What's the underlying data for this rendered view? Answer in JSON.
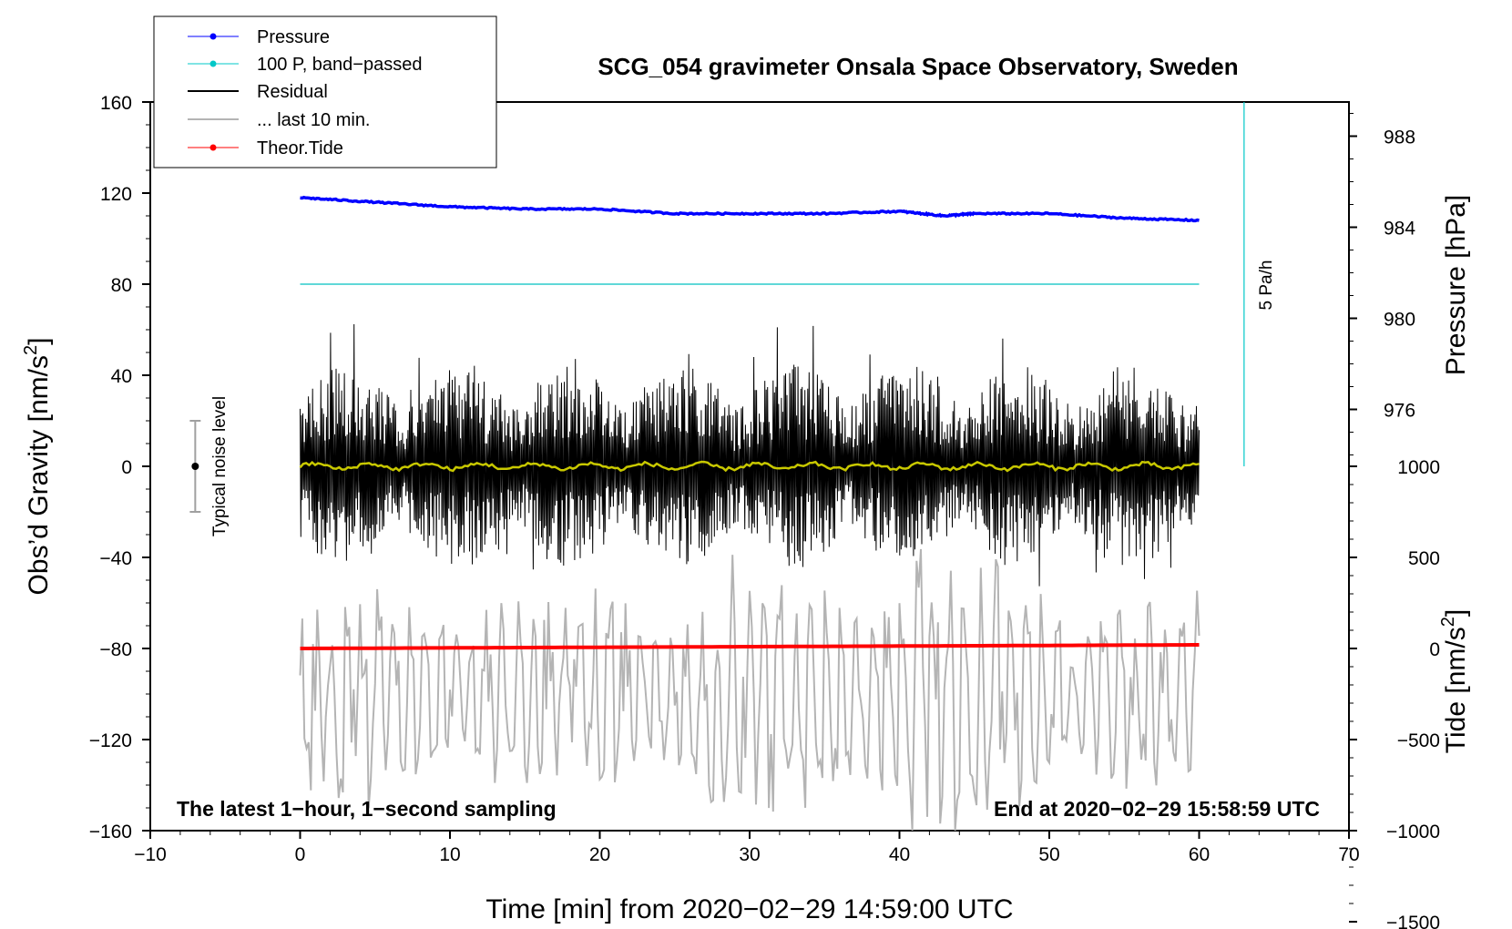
{
  "chart_data": {
    "type": "line",
    "title": "SCG_054 gravimeter Onsala Space Observatory, Sweden",
    "xlabel": "Time [min] from 2020−02−29 14:59:00 UTC",
    "xlim": [
      -10,
      70
    ],
    "xticks": [
      -10,
      0,
      10,
      20,
      30,
      40,
      50,
      60,
      70
    ],
    "xtick_labels": [
      "−10",
      "0",
      "10",
      "20",
      "30",
      "40",
      "50",
      "60",
      "70"
    ],
    "ylabel_left_prefix": "Obs’d Gravity [nm/s",
    "ylabel_left_sup": "2",
    "ylabel_left_suffix": "]",
    "ylim_left": [
      -160,
      160
    ],
    "yticks_left": [
      -160,
      -120,
      -80,
      -40,
      0,
      40,
      80,
      120,
      160
    ],
    "ytick_labels_left": [
      "−160",
      "−120",
      "−80",
      "−40",
      "0",
      "40",
      "80",
      "120",
      "160"
    ],
    "ylabel_pressure": "Pressure [hPa]",
    "pressure_ticks": [
      976,
      980,
      984,
      988
    ],
    "pressure_tick_labels": [
      "976",
      "980",
      "984",
      "988"
    ],
    "pressure_axis_map": {
      "hpa_at_gravity_0": 973.5,
      "nm_s2_per_hpa": 10
    },
    "ylabel_tide_prefix": "Tide [nm/s",
    "ylabel_tide_sup": "2",
    "ylabel_tide_suffix": "]",
    "tide_ticks": [
      1000,
      500,
      0,
      -500,
      -1000,
      -1500
    ],
    "tide_tick_labels": [
      "1000",
      "500",
      "0",
      "−500",
      "−1000",
      "−1500"
    ],
    "tide_axis_map": {
      "tide_at_gravity_minus80": 0,
      "tide_per_gravity_unit": 12.5
    },
    "series": [
      {
        "name": "Pressure",
        "color": "#0000ff",
        "x": [
          0,
          5,
          10,
          15,
          20,
          25,
          30,
          35,
          40,
          43,
          45,
          50,
          55,
          60
        ],
        "y_hpa": [
          985.3,
          985.1,
          984.9,
          984.8,
          984.8,
          984.6,
          984.6,
          984.6,
          984.7,
          984.5,
          984.6,
          984.6,
          984.4,
          984.3
        ]
      },
      {
        "name": "100 P, band−passed",
        "color": "#00c0c0",
        "x": [
          0,
          60
        ],
        "y": [
          80,
          80
        ]
      },
      {
        "name": "Residual",
        "color": "#000000",
        "x_range": [
          0,
          60
        ],
        "envelope_amplitude": 45
      },
      {
        "name": "Residual (smoothed)",
        "color": "#c8c800",
        "x_range": [
          0,
          60
        ],
        "level": 0
      },
      {
        "name": "... last 10 min.",
        "color": "#b4b4b4",
        "x_range": [
          0,
          60
        ],
        "center": -100,
        "amplitude": 40
      },
      {
        "name": "Theor.Tide",
        "color": "#ff0000",
        "x": [
          0,
          60
        ],
        "y_tide": [
          0,
          20
        ]
      }
    ],
    "legend": [
      "Pressure",
      "100 P, band−passed",
      "Residual",
      "... last 10 min.",
      "Theor.Tide"
    ],
    "legend_position": "top-left",
    "noise_label": "Typical noise level",
    "noise_level": [
      -20,
      20
    ],
    "rate_label": "5 Pa/h",
    "rate_marker_x": 63,
    "rate_marker_y": [
      0,
      160
    ],
    "annotation_left": "The latest 1−hour, 1−second sampling",
    "annotation_right": "End at 2020−02−29 15:58:59 UTC"
  }
}
